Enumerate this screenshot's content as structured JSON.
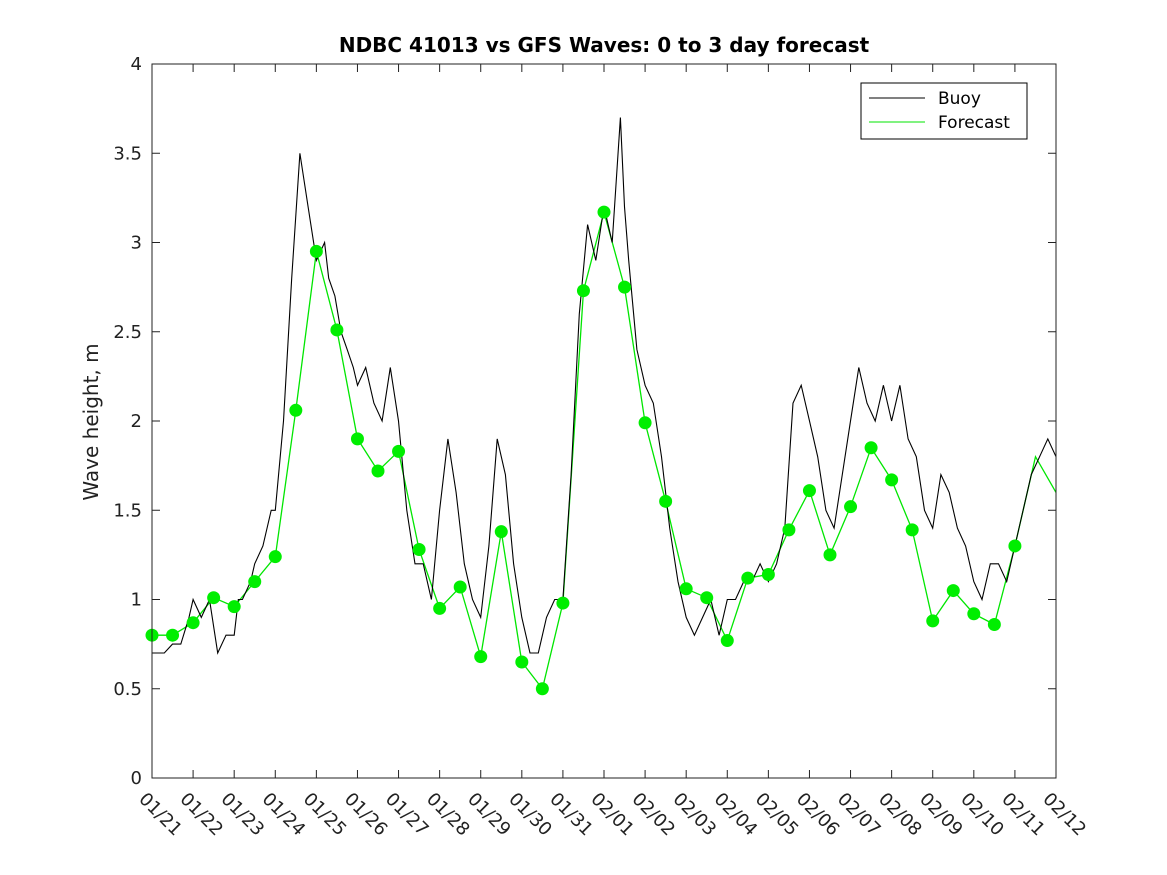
{
  "chart_data": {
    "type": "line",
    "title": "NDBC 41013 vs GFS Waves: 0 to 3 day forecast",
    "xlabel": "",
    "ylabel": "Wave height, m",
    "xlim": [
      0,
      22
    ],
    "ylim": [
      0,
      4
    ],
    "yticks": [
      0,
      0.5,
      1,
      1.5,
      2,
      2.5,
      3,
      3.5,
      4
    ],
    "ytick_labels": [
      "0",
      "0.5",
      "1",
      "1.5",
      "2",
      "2.5",
      "3",
      "3.5",
      "4"
    ],
    "xtick_labels": [
      "01/21",
      "01/22",
      "01/23",
      "01/24",
      "01/25",
      "01/26",
      "01/27",
      "01/28",
      "01/29",
      "01/30",
      "01/31",
      "02/01",
      "02/02",
      "02/03",
      "02/04",
      "02/05",
      "02/06",
      "02/07",
      "02/08",
      "02/09",
      "02/10",
      "02/11",
      "02/12"
    ],
    "legend": {
      "location": "top-right",
      "entries": [
        "Buoy",
        "Forecast"
      ]
    },
    "colors": {
      "buoy": "#000000",
      "forecast": "#00e600",
      "markers": "#00ee00"
    },
    "series": [
      {
        "name": "Buoy",
        "x": [
          0,
          0.3,
          0.5,
          0.7,
          0.9,
          1.0,
          1.2,
          1.4,
          1.6,
          1.8,
          2.0,
          2.1,
          2.2,
          2.4,
          2.5,
          2.7,
          2.9,
          3.0,
          3.2,
          3.4,
          3.6,
          3.8,
          4.0,
          4.2,
          4.3,
          4.45,
          4.6,
          4.75,
          4.9,
          5.0,
          5.2,
          5.4,
          5.6,
          5.8,
          6.0,
          6.2,
          6.4,
          6.6,
          6.8,
          7.0,
          7.2,
          7.4,
          7.6,
          7.8,
          8.0,
          8.2,
          8.4,
          8.6,
          8.8,
          9.0,
          9.2,
          9.4,
          9.6,
          9.8,
          10.0,
          10.2,
          10.4,
          10.6,
          10.8,
          11.0,
          11.2,
          11.4,
          11.5,
          11.6,
          11.8,
          12.0,
          12.2,
          12.4,
          12.6,
          12.8,
          13.0,
          13.2,
          13.4,
          13.6,
          13.8,
          14.0,
          14.2,
          14.4,
          14.6,
          14.8,
          15.0,
          15.2,
          15.4,
          15.6,
          15.8,
          16.0,
          16.2,
          16.4,
          16.6,
          16.8,
          17.0,
          17.2,
          17.4,
          17.6,
          17.8,
          18.0,
          18.2,
          18.4,
          18.6,
          18.8,
          19.0,
          19.2,
          19.4,
          19.6,
          19.8,
          20.0,
          20.2,
          20.4,
          20.6,
          20.8,
          21.0,
          21.2,
          21.4,
          21.6,
          21.8,
          22.0
        ],
        "y": [
          0.7,
          0.7,
          0.75,
          0.75,
          0.9,
          1.0,
          0.9,
          1.0,
          0.7,
          0.8,
          0.8,
          1.0,
          1.0,
          1.1,
          1.2,
          1.3,
          1.5,
          1.5,
          2.0,
          2.8,
          3.5,
          3.2,
          2.9,
          3.0,
          2.8,
          2.7,
          2.5,
          2.4,
          2.3,
          2.2,
          2.3,
          2.1,
          2.0,
          2.3,
          2.0,
          1.5,
          1.2,
          1.2,
          1.0,
          1.5,
          1.9,
          1.6,
          1.2,
          1.0,
          0.9,
          1.3,
          1.9,
          1.7,
          1.2,
          0.9,
          0.7,
          0.7,
          0.9,
          1.0,
          1.0,
          1.7,
          2.6,
          3.1,
          2.9,
          3.2,
          3.0,
          3.7,
          3.2,
          2.9,
          2.4,
          2.2,
          2.1,
          1.8,
          1.4,
          1.1,
          0.9,
          0.8,
          0.9,
          1.0,
          0.8,
          1.0,
          1.0,
          1.1,
          1.1,
          1.2,
          1.1,
          1.2,
          1.4,
          2.1,
          2.2,
          2.0,
          1.8,
          1.5,
          1.4,
          1.7,
          2.0,
          2.3,
          2.1,
          2.0,
          2.2,
          2.0,
          2.2,
          1.9,
          1.8,
          1.5,
          1.4,
          1.7,
          1.6,
          1.4,
          1.3,
          1.1,
          1.0,
          1.2,
          1.2,
          1.1,
          1.3,
          1.5,
          1.7,
          1.8,
          1.9,
          1.8
        ]
      },
      {
        "name": "Forecast",
        "x": [
          0,
          0.5,
          1.0,
          1.5,
          2.0,
          2.5,
          3.0,
          3.5,
          4.0,
          4.5,
          5.0,
          5.5,
          6.0,
          6.5,
          7.0,
          7.5,
          8.0,
          8.5,
          9.0,
          9.5,
          10.0,
          10.5,
          11.0,
          11.5,
          12.0,
          12.5,
          13.0,
          13.5,
          14.0,
          14.5,
          15.0,
          15.5,
          16.0,
          16.5,
          17.0,
          17.5,
          18.0,
          18.5,
          19.0,
          19.5,
          20.0,
          20.5,
          21.0,
          21.5,
          22.0
        ],
        "y": [
          0.8,
          0.8,
          0.87,
          1.01,
          0.96,
          1.1,
          1.24,
          2.06,
          2.95,
          2.51,
          1.9,
          1.72,
          1.83,
          1.28,
          0.95,
          1.07,
          0.68,
          1.38,
          0.65,
          0.5,
          0.98,
          2.73,
          3.17,
          2.75,
          1.99,
          1.55,
          1.06,
          1.01,
          0.77,
          1.12,
          1.14,
          1.39,
          1.61,
          1.25,
          1.52,
          1.85,
          1.67,
          1.39,
          0.88,
          1.05,
          0.92,
          0.86,
          1.3,
          1.8,
          1.6
        ]
      }
    ],
    "markers": {
      "x": [
        0,
        0.5,
        1.0,
        1.5,
        2.0,
        2.5,
        3.0,
        3.5,
        4.0,
        4.5,
        5.0,
        5.5,
        6.0,
        6.5,
        7.0,
        7.5,
        8.0,
        8.5,
        9.0,
        9.5,
        10.0,
        10.5,
        11.0,
        11.5,
        12.0,
        12.5,
        13.0,
        13.5,
        14.0,
        14.5,
        15.0,
        15.5,
        16.0,
        16.5,
        17.0,
        17.5,
        18.0,
        18.5,
        19.0,
        19.5,
        20.0,
        20.5,
        21.0
      ],
      "y": [
        0.8,
        0.8,
        0.87,
        1.01,
        0.96,
        1.1,
        1.24,
        2.06,
        2.95,
        2.51,
        1.9,
        1.72,
        1.83,
        1.28,
        0.95,
        1.07,
        0.68,
        1.38,
        0.65,
        0.5,
        0.98,
        2.73,
        3.17,
        2.75,
        1.99,
        1.55,
        1.06,
        1.01,
        0.77,
        1.12,
        1.14,
        1.39,
        1.61,
        1.25,
        1.52,
        1.85,
        1.67,
        1.39,
        0.88,
        1.05,
        0.92,
        0.86,
        1.3
      ]
    }
  }
}
